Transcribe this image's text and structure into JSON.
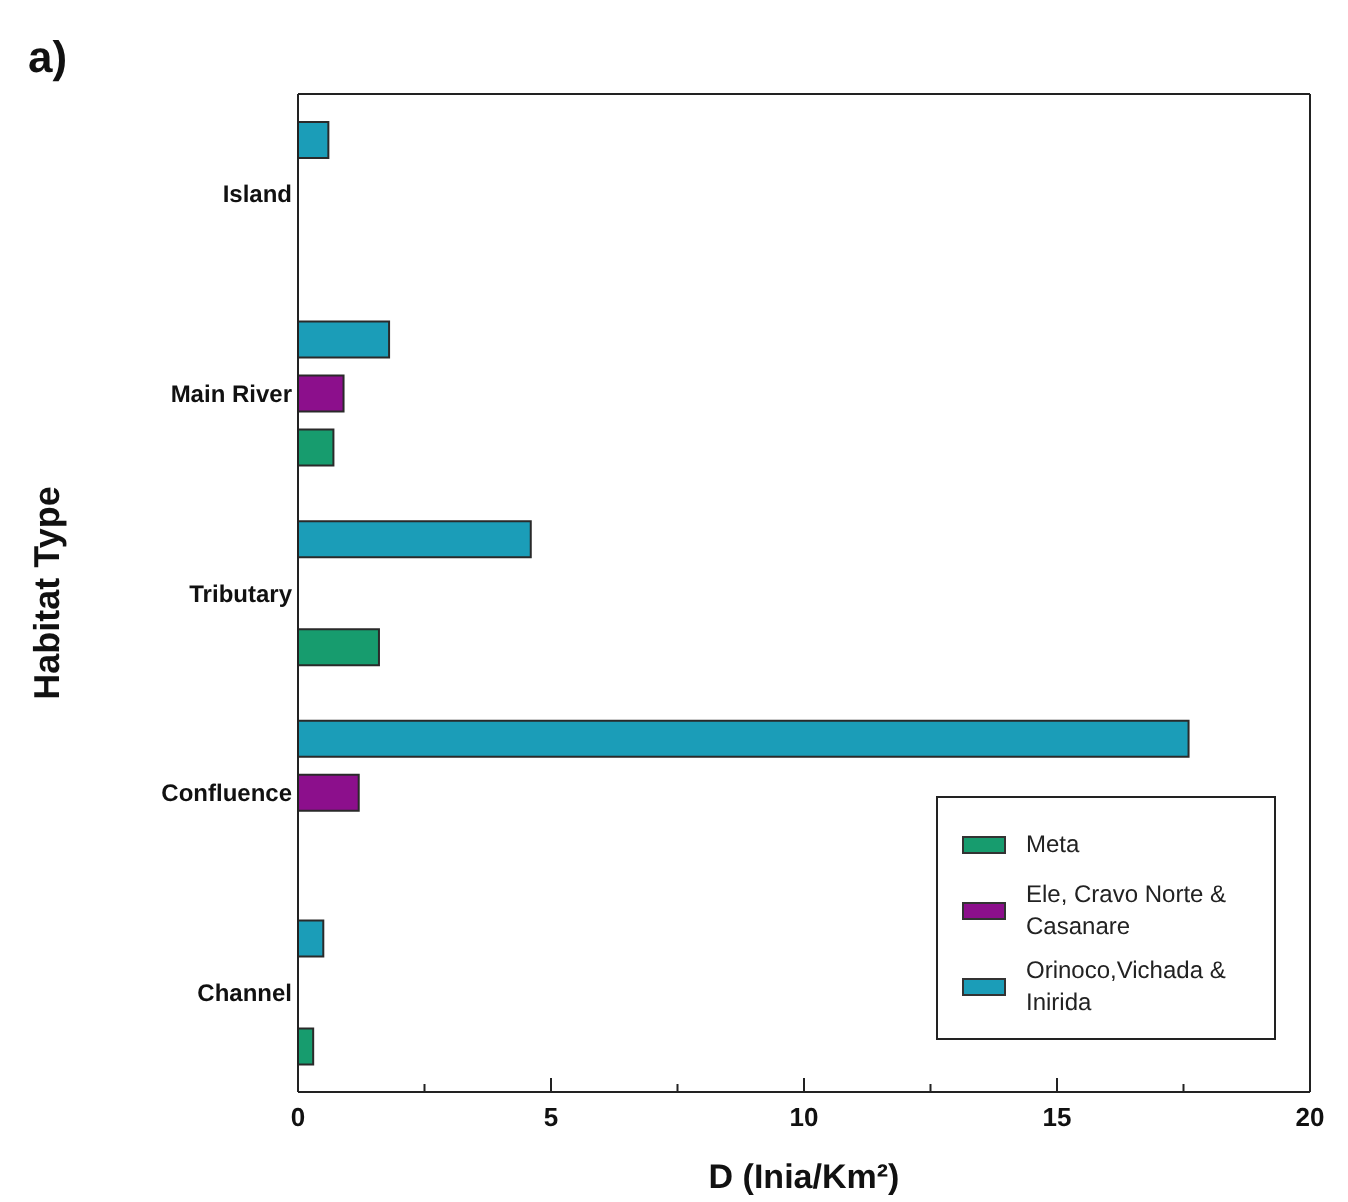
{
  "chart_data": {
    "type": "bar",
    "orientation": "horizontal",
    "title": "a)",
    "xlabel": "D (Inia/Km²)",
    "ylabel": "Habitat Type",
    "categories": [
      "Island",
      "Main River",
      "Tributary",
      "Confluence",
      "Channel"
    ],
    "series": [
      {
        "name": "Meta",
        "color": "#179c6e",
        "values": [
          null,
          0.7,
          1.6,
          null,
          0.3
        ]
      },
      {
        "name": "Ele, Cravo Norte & Casanare",
        "color": "#8c0f8c",
        "values": [
          null,
          0.9,
          null,
          1.2,
          null
        ]
      },
      {
        "name": "Orinoco,Vichada & Inirida",
        "color": "#1b9db8",
        "values": [
          0.6,
          1.8,
          4.6,
          17.6,
          0.5
        ]
      }
    ],
    "xlim": [
      0,
      20
    ],
    "xticks": [
      0,
      {
        "value": 2.5,
        "label": null
      },
      5,
      {
        "value": 7.5,
        "label": null
      },
      10,
      {
        "value": 12.5,
        "label": null
      },
      15,
      {
        "value": 17.5,
        "label": null
      },
      20
    ],
    "legend": "bottom right"
  }
}
